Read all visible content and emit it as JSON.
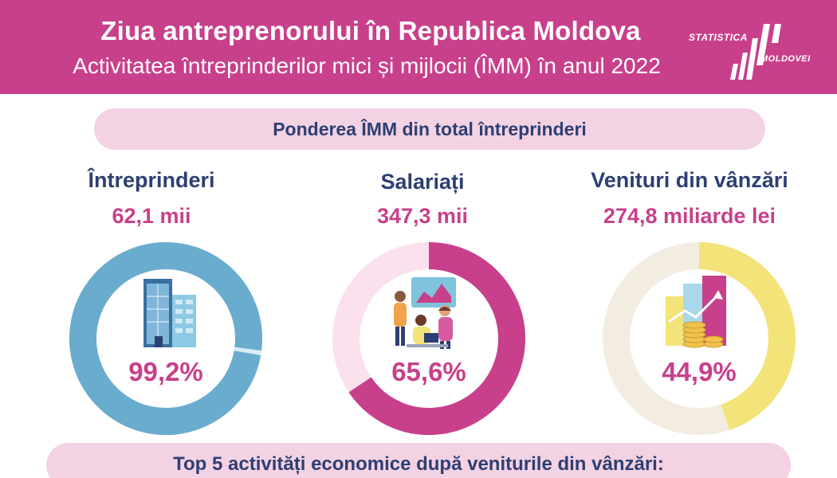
{
  "header": {
    "title": "Ziua antreprenorului în Republica Moldova",
    "subtitle": "Activitatea întreprinderilor mici și mijlocii (ÎMM) în anul 2022",
    "logo_line1": "STATISTICA",
    "logo_line2": "MOLDOVEI"
  },
  "section_title": "Ponderea ÎMM din total întreprinderi",
  "bottom_title": "Top 5 activități economice după veniturile din vânzări:",
  "colors": {
    "brand": "#c8408b",
    "navy": "#2d3f73",
    "blue": "#6aaccd",
    "pink_light": "#fbe0ee",
    "yellow": "#f2e479",
    "cream": "#f3ede1"
  },
  "chart_data": [
    {
      "type": "pie",
      "label": "Întreprinderi",
      "value_text": "62,1 mii",
      "share": 99.2,
      "share_text": "99,2%",
      "icon": "office-building-icon"
    },
    {
      "type": "pie",
      "label": "Salariați",
      "value_text": "347,3 mii",
      "share": 65.6,
      "share_text": "65,6%",
      "icon": "team-meeting-icon"
    },
    {
      "type": "pie",
      "label": "Venituri din vânzări",
      "value_text": "274,8 miliarde lei",
      "share": 44.9,
      "share_text": "44,9%",
      "icon": "revenue-growth-icon"
    }
  ]
}
